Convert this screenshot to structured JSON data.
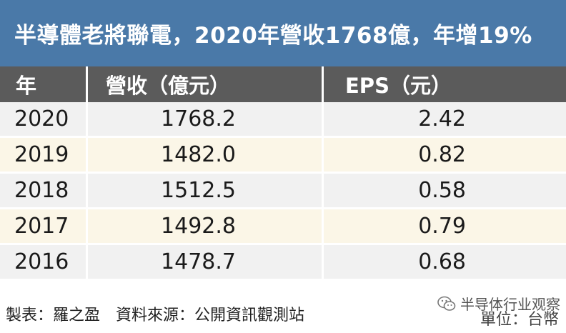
{
  "title": "半導體老將聯電，2020年營收1768億，年增19%",
  "table": {
    "headers": [
      "年",
      "營收（億元）",
      "EPS（元）"
    ],
    "rows": [
      {
        "year": "2020",
        "revenue": "1768.2",
        "eps": "2.42"
      },
      {
        "year": "2019",
        "revenue": "1482.0",
        "eps": "0.82"
      },
      {
        "year": "2018",
        "revenue": "1512.5",
        "eps": "0.58"
      },
      {
        "year": "2017",
        "revenue": "1492.8",
        "eps": "0.79"
      },
      {
        "year": "2016",
        "revenue": "1478.7",
        "eps": "0.68"
      }
    ]
  },
  "footer": {
    "credit": "製表：羅之盈　資料來源：公開資訊觀測站",
    "unit": "單位：台幣",
    "watermark": "半导体行业观察"
  },
  "colors": {
    "title_bg": "#4a79a8",
    "header_bg": "#5b5b5b",
    "row_odd": "#f1f1f1",
    "row_even": "#fbf6e7"
  },
  "icons": {
    "watermark": "wechat-icon"
  }
}
